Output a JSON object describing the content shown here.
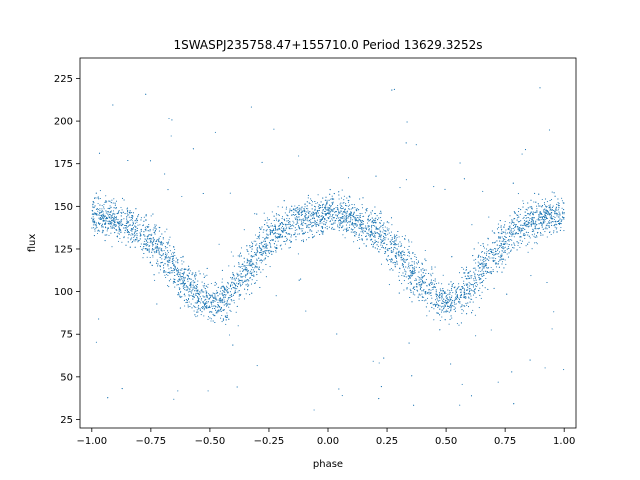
{
  "chart_data": {
    "type": "scatter",
    "title": "1SWASPJ235758.47+155710.0 Period 13629.3252s",
    "xlabel": "phase",
    "ylabel": "flux",
    "xlim": [
      -1.05,
      1.05
    ],
    "ylim": [
      20,
      237
    ],
    "grid": false,
    "legend": "none",
    "point_color": "#1f77b4",
    "x_ticks": [
      -1.0,
      -0.75,
      -0.5,
      -0.25,
      0.0,
      0.25,
      0.5,
      0.75,
      1.0
    ],
    "x_tick_labels": [
      "−1.00",
      "−0.75",
      "−0.50",
      "−0.25",
      "0.00",
      "0.25",
      "0.50",
      "0.75",
      "1.00"
    ],
    "y_ticks": [
      25,
      50,
      75,
      100,
      125,
      150,
      175,
      200,
      225
    ],
    "y_tick_labels": [
      "25",
      "50",
      "75",
      "100",
      "125",
      "150",
      "175",
      "200",
      "225"
    ],
    "series": [
      {
        "x": [
          -1.0,
          -0.95,
          -0.9,
          -0.85,
          -0.8,
          -0.75,
          -0.7,
          -0.65,
          -0.6,
          -0.55,
          -0.5,
          -0.45,
          -0.4,
          -0.35,
          -0.3,
          -0.25,
          -0.2,
          -0.15,
          -0.1,
          -0.05,
          0.0,
          0.05,
          0.1,
          0.15,
          0.2,
          0.25,
          0.3,
          0.35,
          0.4,
          0.45,
          0.5,
          0.55,
          0.6,
          0.65,
          0.7,
          0.75,
          0.8,
          0.85,
          0.9,
          0.95,
          1.0
        ],
        "y": [
          145,
          144,
          142,
          139,
          135,
          130,
          123,
          114,
          105,
          97,
          93,
          95,
          102,
          112,
          122,
          130,
          136,
          140,
          143,
          144,
          145,
          144,
          142,
          139,
          135,
          130,
          123,
          114,
          105,
          97,
          93,
          95,
          102,
          112,
          122,
          130,
          136,
          140,
          143,
          144,
          145
        ]
      }
    ]
  }
}
